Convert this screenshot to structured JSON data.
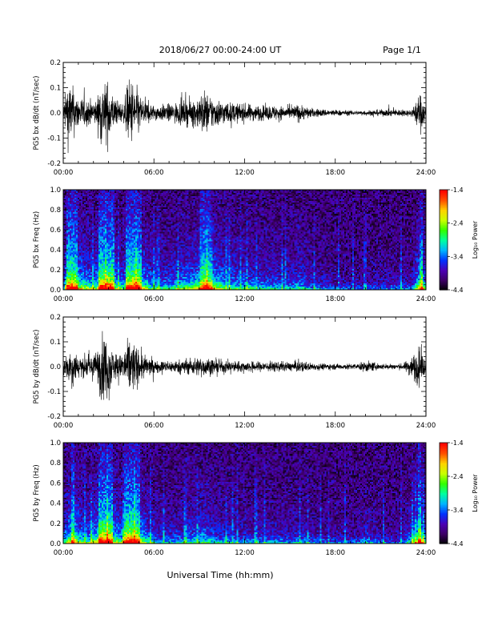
{
  "header": {
    "title": "2018/06/27  00:00-24:00 UT",
    "page": "Page 1/1"
  },
  "xlabel": "Universal Time (hh:mm)",
  "colors": {
    "trace": "#000000",
    "background": "#ffffff",
    "colormap": [
      "#000000",
      "#3c0064",
      "#4b00b4",
      "#0032ff",
      "#00b4ff",
      "#00ffa0",
      "#32ff00",
      "#c8ff00",
      "#ffd200",
      "#ff5000",
      "#ff0000"
    ]
  },
  "chart_data": [
    {
      "type": "line",
      "panel": "bx-waveform",
      "ylabel": "PG5 bx dB/dt (nT/sec)",
      "x_ticks": [
        "00:00",
        "06:00",
        "12:00",
        "18:00",
        "24:00"
      ],
      "xlim": [
        0,
        24
      ],
      "ylim": [
        -0.2,
        0.2
      ],
      "y_ticks": [
        "-0.2",
        "-0.1",
        "0.0",
        "0.1",
        "0.2"
      ],
      "envelope": {
        "x_hours": [
          0,
          0.3,
          0.5,
          0.9,
          1.5,
          2.2,
          2.5,
          2.8,
          3.0,
          3.4,
          4.0,
          4.3,
          4.6,
          5.2,
          6.0,
          7.0,
          8.0,
          8.8,
          9.3,
          10.0,
          11.0,
          12.0,
          13.0,
          14.0,
          15.0,
          15.5,
          16.5,
          18.0,
          19.5,
          20.5,
          22.0,
          23.0,
          23.4,
          23.7,
          24.0
        ],
        "amplitude": [
          0.05,
          0.22,
          0.2,
          0.12,
          0.09,
          0.08,
          0.22,
          0.2,
          0.22,
          0.09,
          0.06,
          0.22,
          0.22,
          0.1,
          0.05,
          0.06,
          0.08,
          0.1,
          0.15,
          0.1,
          0.07,
          0.06,
          0.05,
          0.05,
          0.04,
          0.06,
          0.03,
          0.02,
          0.015,
          0.02,
          0.025,
          0.02,
          0.09,
          0.14,
          0.03
        ]
      }
    },
    {
      "type": "heatmap",
      "panel": "bx-spectrogram",
      "ylabel": "PG5 bx Freq (Hz)",
      "x_ticks": [
        "00:00",
        "06:00",
        "12:00",
        "18:00",
        "24:00"
      ],
      "xlim": [
        0,
        24
      ],
      "ylim": [
        0,
        1.0
      ],
      "y_ticks": [
        "0.0",
        "0.2",
        "0.4",
        "0.6",
        "0.8",
        "1.0"
      ],
      "colorbar": {
        "label": "Log₁₀ Power",
        "ticks": [
          "-1.4",
          "-2.4",
          "-3.4",
          "-4.4"
        ],
        "range": [
          -4.4,
          -1.4
        ]
      }
    },
    {
      "type": "line",
      "panel": "by-waveform",
      "ylabel": "PG5 by dB/dt (nT/sec)",
      "x_ticks": [
        "00:00",
        "06:00",
        "12:00",
        "18:00",
        "24:00"
      ],
      "xlim": [
        0,
        24
      ],
      "ylim": [
        -0.2,
        0.2
      ],
      "y_ticks": [
        "-0.2",
        "-0.1",
        "0.0",
        "0.1",
        "0.2"
      ],
      "envelope": {
        "x_hours": [
          0,
          0.3,
          0.6,
          1.0,
          1.6,
          2.2,
          2.5,
          2.8,
          3.0,
          3.3,
          3.8,
          4.2,
          4.5,
          4.8,
          5.5,
          6.2,
          7.0,
          8.0,
          8.6,
          9.2,
          10.0,
          11.0,
          12.0,
          13.0,
          14.0,
          15.0,
          15.5,
          16.5,
          18.0,
          19.5,
          20.0,
          21.0,
          22.5,
          23.2,
          23.6,
          24.0
        ],
        "amplitude": [
          0.06,
          0.1,
          0.14,
          0.08,
          0.07,
          0.1,
          0.22,
          0.2,
          0.22,
          0.1,
          0.08,
          0.16,
          0.22,
          0.14,
          0.07,
          0.04,
          0.04,
          0.05,
          0.06,
          0.07,
          0.05,
          0.04,
          0.035,
          0.035,
          0.035,
          0.03,
          0.04,
          0.025,
          0.02,
          0.02,
          0.04,
          0.02,
          0.02,
          0.09,
          0.14,
          0.03
        ]
      }
    },
    {
      "type": "heatmap",
      "panel": "by-spectrogram",
      "ylabel": "PG5 by Freq (Hz)",
      "x_ticks": [
        "00:00",
        "06:00",
        "12:00",
        "18:00",
        "24:00"
      ],
      "xlim": [
        0,
        24
      ],
      "ylim": [
        0,
        1.0
      ],
      "y_ticks": [
        "0.0",
        "0.2",
        "0.4",
        "0.6",
        "0.8",
        "1.0"
      ],
      "colorbar": {
        "label": "Log₁₀ Power",
        "ticks": [
          "-1.4",
          "-2.4",
          "-3.4",
          "-4.4"
        ],
        "range": [
          -4.4,
          -1.4
        ]
      }
    }
  ]
}
